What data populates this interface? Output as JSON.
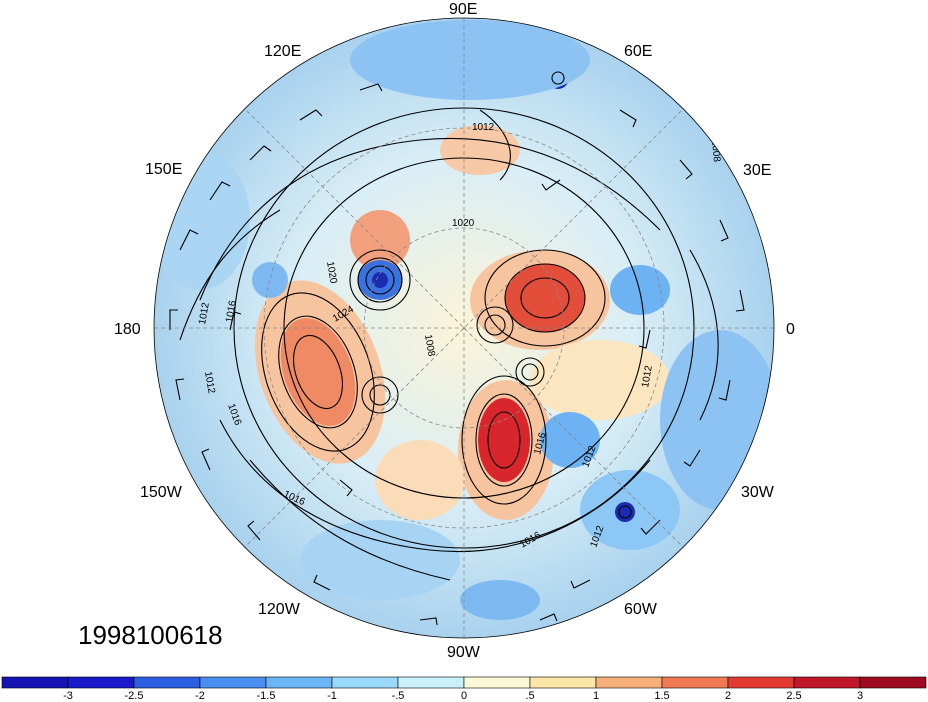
{
  "timestamp": "1998100618",
  "map": {
    "projection": "north-polar-stereographic",
    "longitude_labels": [
      "90E",
      "60E",
      "30E",
      "0",
      "30W",
      "60W",
      "90W",
      "120W",
      "150W",
      "180",
      "150E",
      "120E"
    ],
    "contour_labels": [
      "1012",
      "1020",
      "1016",
      "1012",
      "1016",
      "1008",
      "1012",
      "1016",
      "1020",
      "1024",
      "1012",
      "1016",
      "1012",
      "1016",
      "1012",
      "1008"
    ]
  },
  "colorbar": {
    "ticks": [
      "-3",
      "-2.5",
      "-2",
      "-1.5",
      "-1",
      "-.5",
      "0",
      ".5",
      "1",
      "1.5",
      "2",
      "2.5",
      "3"
    ],
    "colors": [
      "#1a1aca",
      "#2b5fe0",
      "#4a8ef0",
      "#6cb5f7",
      "#9ad9fb",
      "#c9f0fb",
      "#fbf8d8",
      "#fbe6a8",
      "#f8b07a",
      "#f17a55",
      "#e23a30",
      "#c0162a",
      "#9e0a1f"
    ]
  }
}
